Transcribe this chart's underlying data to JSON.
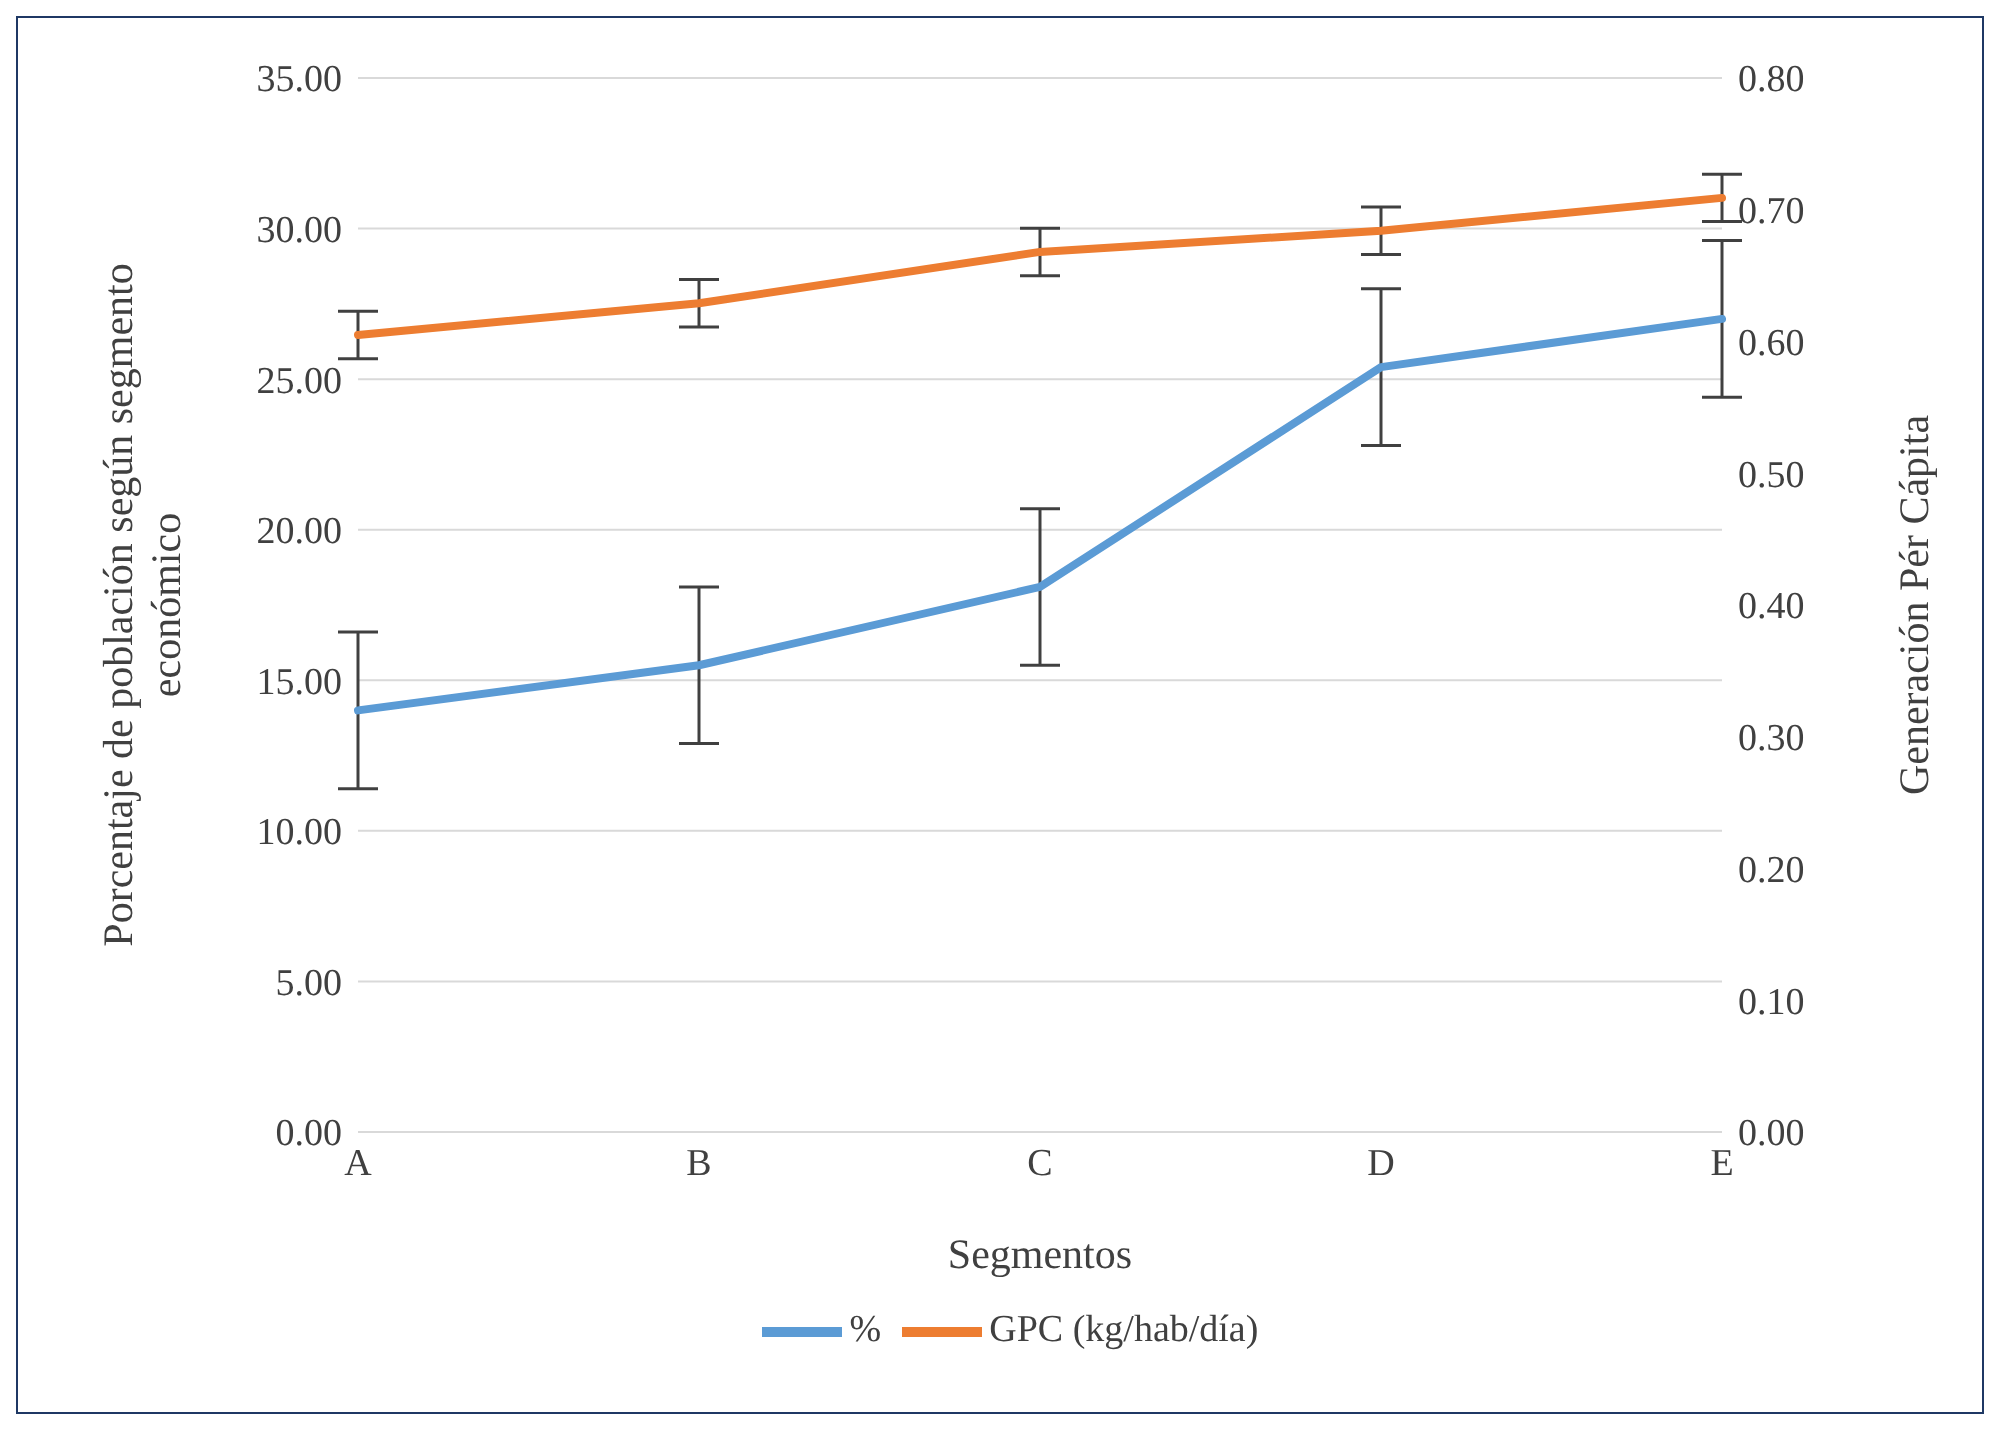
{
  "chart_data": {
    "type": "line",
    "xlabel": "Segmentos",
    "ylabel": "Porcentaje de población según segmento económico",
    "y2label": "Generación Pér Cápita",
    "categories": [
      "A",
      "B",
      "C",
      "D",
      "E"
    ],
    "series": [
      {
        "name": "%",
        "color": "#5b9bd5",
        "values": [
          14.0,
          15.5,
          18.1,
          25.4,
          27.0
        ],
        "errors": [
          2.6,
          2.6,
          2.6,
          2.6,
          2.6
        ]
      },
      {
        "name": "GPC (kg/hab/día)",
        "color": "#ed7d31",
        "axis": "y2",
        "values": [
          0.605,
          0.629,
          0.668,
          0.684,
          0.709
        ],
        "errors": [
          0.018,
          0.018,
          0.018,
          0.018,
          0.018
        ]
      }
    ],
    "ylim": [
      0,
      35
    ],
    "yticks": [
      {
        "value": 0,
        "label": "0.00"
      },
      {
        "value": 5,
        "label": "5.00"
      },
      {
        "value": 10,
        "label": "10.00"
      },
      {
        "value": 15,
        "label": "15.00"
      },
      {
        "value": 20,
        "label": "20.00"
      },
      {
        "value": 25,
        "label": "25.00"
      },
      {
        "value": 30,
        "label": "30.00"
      },
      {
        "value": 35,
        "label": "35.00"
      }
    ],
    "y2lim": [
      0,
      0.8
    ],
    "y2ticks": [
      {
        "value": 0,
        "label": "0.00"
      },
      {
        "value": 0.1,
        "label": "0.10"
      },
      {
        "value": 0.2,
        "label": "0.20"
      },
      {
        "value": 0.3,
        "label": "0.30"
      },
      {
        "value": 0.4,
        "label": "0.40"
      },
      {
        "value": 0.5,
        "label": "0.50"
      },
      {
        "value": 0.6,
        "label": "0.60"
      },
      {
        "value": 0.7,
        "label": "0.70"
      },
      {
        "value": 0.8,
        "label": "0.80"
      }
    ],
    "grid": "y",
    "legend": "bottom",
    "marker": "none",
    "line_style": "solid"
  }
}
